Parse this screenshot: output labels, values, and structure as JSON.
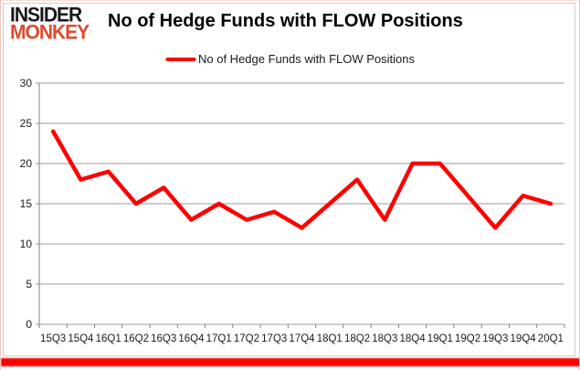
{
  "branding": {
    "logo_line1": "INSIDER",
    "logo_line2": "MONKEY",
    "logo_color1": "#171717",
    "logo_color2": "#e0492e"
  },
  "header": {
    "title": "No of Hedge Funds with FLOW Positions"
  },
  "legend": {
    "label": "No of Hedge Funds with FLOW Positions",
    "line_color": "#ff0000"
  },
  "chart_data": {
    "type": "line",
    "title": "No of Hedge Funds with FLOW Positions",
    "categories": [
      "15Q3",
      "15Q4",
      "16Q1",
      "16Q2",
      "16Q3",
      "16Q4",
      "17Q1",
      "17Q2",
      "17Q3",
      "17Q4",
      "18Q1",
      "18Q2",
      "18Q3",
      "18Q4",
      "19Q1",
      "19Q2",
      "19Q3",
      "19Q4",
      "20Q1"
    ],
    "series": [
      {
        "name": "No of Hedge Funds with FLOW Positions",
        "color": "#ff0000",
        "values": [
          24,
          18,
          19,
          15,
          17,
          13,
          15,
          13,
          14,
          12,
          15,
          18,
          13,
          20,
          20,
          16,
          12,
          16,
          15
        ]
      }
    ],
    "xlabel": "",
    "ylabel": "",
    "ylim": [
      0,
      30
    ],
    "yticks": [
      0,
      5,
      10,
      15,
      20,
      25,
      30
    ],
    "grid": true,
    "legend_position": "top"
  },
  "colors": {
    "grid": "#9b9b9b",
    "axis": "#808080",
    "tick_text": "#1a1a1a",
    "bottom_bar": "#ff0000",
    "chart_border": "#cfcfcf"
  }
}
